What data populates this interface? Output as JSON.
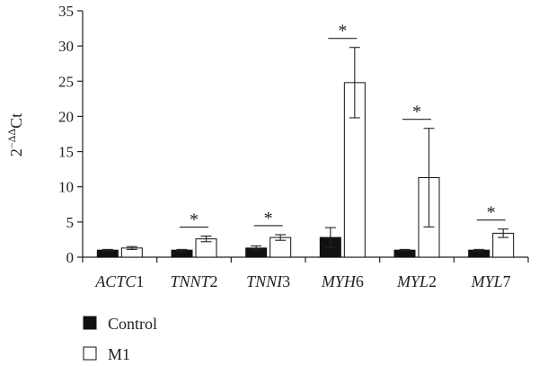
{
  "chart_data": {
    "type": "bar",
    "categories": [
      "ACTC1",
      "TNNT2",
      "TNNI3",
      "MYH6",
      "MYL2",
      "MYL7"
    ],
    "category_prefix": [
      "ACTC",
      "TNNT",
      "TNNI",
      "MYH",
      "MYL",
      "MYL"
    ],
    "category_suffix": [
      "1",
      "2",
      "3",
      "6",
      "2",
      "7"
    ],
    "series": [
      {
        "name": "Control",
        "color": "#111111",
        "values": [
          1.0,
          1.0,
          1.3,
          2.8,
          1.0,
          1.0
        ],
        "errors": [
          0.1,
          0.1,
          0.3,
          1.4,
          0.1,
          0.1
        ]
      },
      {
        "name": "M1",
        "color": "#ffffff",
        "values": [
          1.3,
          2.6,
          2.8,
          24.8,
          11.3,
          3.4
        ],
        "errors": [
          0.2,
          0.4,
          0.4,
          5.0,
          7.0,
          0.6
        ]
      }
    ],
    "significance": [
      "",
      "*",
      "*",
      "*",
      "*",
      "*"
    ],
    "ylabel_base": "2",
    "ylabel_exponent": "−ΔΔ",
    "ylabel_tail": "Ct",
    "ylim": [
      0,
      35
    ],
    "yticks": [
      0,
      5,
      10,
      15,
      20,
      25,
      30,
      35
    ],
    "legend_position": "bottom-left",
    "grid": false
  }
}
